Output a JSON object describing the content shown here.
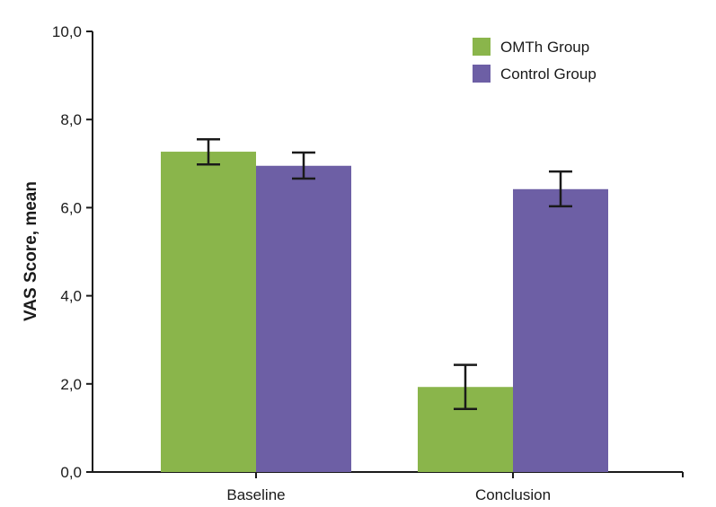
{
  "chart_data": {
    "type": "bar",
    "title": "",
    "xlabel": "",
    "ylabel": "VAS Score, mean",
    "ylim": [
      0,
      10
    ],
    "yticks": [
      "0,0",
      "2,0",
      "4,0",
      "6,0",
      "8,0",
      "10,0"
    ],
    "ytick_values": [
      0,
      2,
      4,
      6,
      8,
      10
    ],
    "categories": [
      "Baseline",
      "Conclusion"
    ],
    "series": [
      {
        "name": "OMTh Group",
        "color": "#8ab54b",
        "values": [
          7.27,
          1.93
        ],
        "err_low": [
          6.98,
          1.43
        ],
        "err_high": [
          7.55,
          2.43
        ]
      },
      {
        "name": "Control Group",
        "color": "#6d5fa5",
        "values": [
          6.95,
          6.42
        ],
        "err_low": [
          6.66,
          6.03
        ],
        "err_high": [
          7.25,
          6.82
        ]
      }
    ],
    "legend": {
      "position": "top-right"
    },
    "grid": false
  }
}
